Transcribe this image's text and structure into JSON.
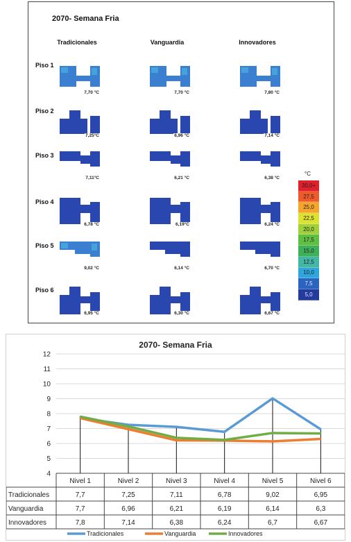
{
  "heatmap_panel": {
    "title": "2070- Semana Fria",
    "columns": [
      "Tradicionales",
      "Vanguardia",
      "Innovadores"
    ],
    "rows": [
      {
        "label": "Piso 1",
        "values": [
          "7,70 °C",
          "7,70 °C",
          "7,80 °C"
        ]
      },
      {
        "label": "Piso 2",
        "values": [
          "7,25°C",
          "6,96 °C",
          "7,14 °C"
        ]
      },
      {
        "label": "Piso 3",
        "values": [
          "7,11°C",
          "6,21 °C",
          "6,38 °C"
        ]
      },
      {
        "label": "Piso 4",
        "values": [
          "6,78 °C",
          "6,19°C",
          "6,24 °C"
        ]
      },
      {
        "label": "Piso 5",
        "values": [
          "9,02 °C",
          "6,14 °C",
          "6,70 °C"
        ]
      },
      {
        "label": "Piso 6",
        "values": [
          "6,95 °C",
          "6,30 °C",
          "6,67 °C"
        ]
      }
    ],
    "scale_unit": "°C",
    "scale": [
      {
        "label": "30,0+",
        "color": "#e0202a"
      },
      {
        "label": "27,5",
        "color": "#ef5a2a"
      },
      {
        "label": "25,0",
        "color": "#f6a52c"
      },
      {
        "label": "22,5",
        "color": "#dde12f"
      },
      {
        "label": "20,0",
        "color": "#9fd13a"
      },
      {
        "label": "17,5",
        "color": "#5fbf43"
      },
      {
        "label": "15,0",
        "color": "#3fb05a"
      },
      {
        "label": "12,5",
        "color": "#42b7a6"
      },
      {
        "label": "10,0",
        "color": "#2ea6dc"
      },
      {
        "label": "7,5",
        "color": "#2a63c0"
      },
      {
        "label": "5,0",
        "color": "#233b9c"
      }
    ]
  },
  "chart_data": {
    "type": "line",
    "title": "2070- Semana Fria",
    "categories": [
      "Nivel 1",
      "Nivel 2",
      "Nivel 3",
      "Nivel 4",
      "Nivel 5",
      "Nivel 6"
    ],
    "ylim": [
      4,
      12
    ],
    "yticks": [
      "4",
      "5",
      "6",
      "7",
      "8",
      "9",
      "10",
      "11",
      "12"
    ],
    "series": [
      {
        "name": "Tradicionales",
        "color": "#5b9bd5",
        "values": [
          7.7,
          7.25,
          7.11,
          6.78,
          9.02,
          6.95
        ],
        "labels": [
          "7,7",
          "7,25",
          "7,11",
          "6,78",
          "9,02",
          "6,95"
        ]
      },
      {
        "name": "Vanguardia",
        "color": "#ed7d31",
        "values": [
          7.7,
          6.96,
          6.21,
          6.19,
          6.14,
          6.3
        ],
        "labels": [
          "7,7",
          "6,96",
          "6,21",
          "6,19",
          "6,14",
          "6,3"
        ]
      },
      {
        "name": "Innovadores",
        "color": "#70ad47",
        "values": [
          7.8,
          7.14,
          6.38,
          6.24,
          6.7,
          6.67
        ],
        "labels": [
          "7,8",
          "7,14",
          "6,38",
          "6,24",
          "6,7",
          "6,67"
        ]
      }
    ],
    "legend": "bottom"
  }
}
